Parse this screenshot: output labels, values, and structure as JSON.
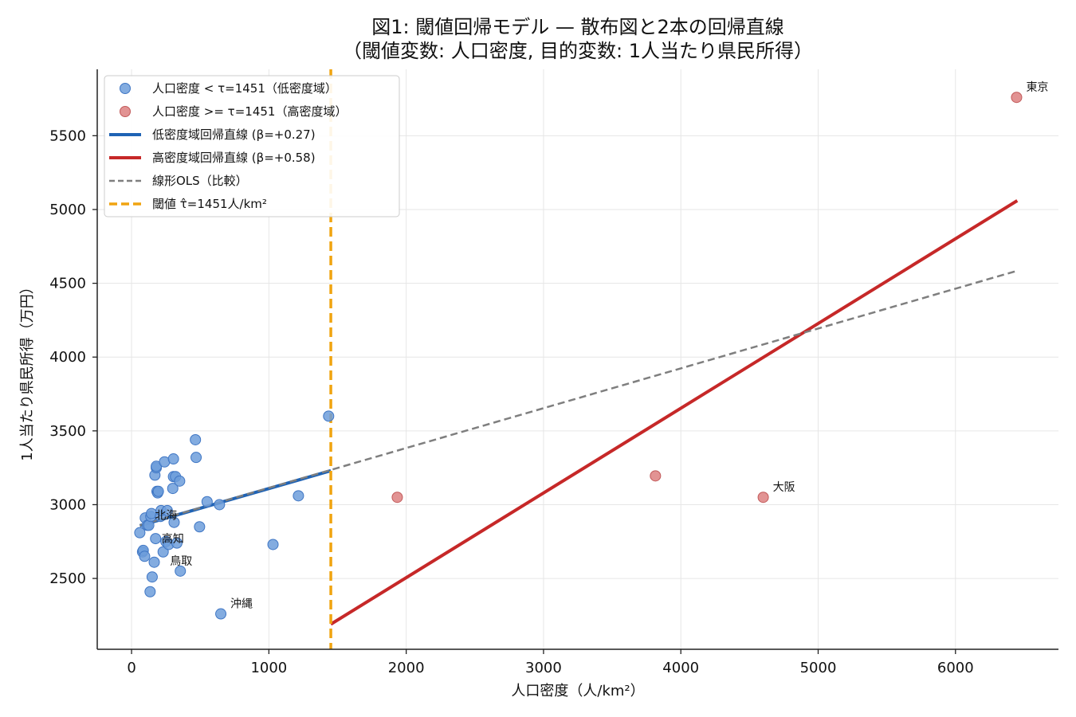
{
  "chart_data": {
    "type": "scatter",
    "title_line1": "図1: 閾値回帰モデル — 散布図と2本の回帰直線",
    "title_line2": "（閾値変数: 人口密度, 目的変数: 1人当たり県民所得）",
    "xlabel": "人口密度（人/km²）",
    "ylabel": "1人当たり県民所得（万円）",
    "xlim": [
      -250,
      6750
    ],
    "ylim": [
      2020,
      5950
    ],
    "x_ticks": [
      0,
      1000,
      2000,
      3000,
      4000,
      5000,
      6000
    ],
    "y_ticks": [
      2500,
      3000,
      3500,
      4000,
      4500,
      5000,
      5500
    ],
    "grid": true,
    "legend_position": "upper-left",
    "colors": {
      "low_points": "#6d9edb",
      "high_points": "#dd8080",
      "low_line": "#1f63b5",
      "high_line": "#c62828",
      "ols": "#7f7f7f",
      "threshold": "#f0a410"
    },
    "threshold": 1451,
    "series": [
      {
        "name": "人口密度 < τ=1451（低密度域）",
        "kind": "points",
        "color_key": "low_points",
        "points": [
          [
            60,
            2810
          ],
          [
            80,
            2680
          ],
          [
            85,
            2690
          ],
          [
            95,
            2650
          ],
          [
            100,
            2910
          ],
          [
            115,
            2860
          ],
          [
            125,
            2860
          ],
          [
            135,
            2410
          ],
          [
            140,
            2920
          ],
          [
            145,
            2940
          ],
          [
            150,
            2510
          ],
          [
            165,
            2610
          ],
          [
            170,
            3200
          ],
          [
            175,
            2770
          ],
          [
            180,
            3250
          ],
          [
            180,
            3260
          ],
          [
            185,
            3090
          ],
          [
            190,
            3080
          ],
          [
            195,
            3090
          ],
          [
            210,
            2920
          ],
          [
            215,
            2960
          ],
          [
            230,
            2680
          ],
          [
            240,
            3290
          ],
          [
            250,
            2750
          ],
          [
            260,
            2960
          ],
          [
            270,
            2730
          ],
          [
            300,
            3110
          ],
          [
            305,
            3310
          ],
          [
            305,
            3190
          ],
          [
            310,
            2880
          ],
          [
            320,
            3190
          ],
          [
            330,
            2740
          ],
          [
            350,
            3160
          ],
          [
            355,
            2550
          ],
          [
            465,
            3440
          ],
          [
            470,
            3320
          ],
          [
            495,
            2850
          ],
          [
            550,
            3020
          ],
          [
            640,
            3000
          ],
          [
            650,
            2260
          ],
          [
            1030,
            2730
          ],
          [
            1215,
            3060
          ],
          [
            1435,
            3600
          ]
        ]
      },
      {
        "name": "人口密度 >= τ=1451（高密度域）",
        "kind": "points",
        "color_key": "high_points",
        "points": [
          [
            1935,
            3050
          ],
          [
            3815,
            3195
          ],
          [
            4600,
            3050
          ],
          [
            6445,
            5760
          ]
        ]
      },
      {
        "name": "低密度域回帰直線 (β=+0.27)",
        "kind": "line",
        "color_key": "low_line",
        "points": [
          [
            60,
            2858
          ],
          [
            1451,
            3230
          ]
        ]
      },
      {
        "name": "高密度域回帰直線 (β=+0.58)",
        "kind": "line",
        "color_key": "high_line",
        "points": [
          [
            1451,
            2190
          ],
          [
            6450,
            5060
          ]
        ]
      },
      {
        "name": "線形OLS（比較）",
        "kind": "dashed",
        "color_key": "ols",
        "points": [
          [
            60,
            2860
          ],
          [
            6450,
            4585
          ]
        ]
      },
      {
        "name": "閾値 τ̂=1451人/km²",
        "kind": "vline",
        "color_key": "threshold",
        "x": 1451
      }
    ],
    "annotations": [
      {
        "label": "東京",
        "x": 6445,
        "y": 5760
      },
      {
        "label": "大阪",
        "x": 4600,
        "y": 3050
      },
      {
        "label": "沖縄",
        "x": 650,
        "y": 2260
      },
      {
        "label": "北海",
        "x": 100,
        "y": 2860
      },
      {
        "label": "高知",
        "x": 150,
        "y": 2700
      },
      {
        "label": "鳥取",
        "x": 210,
        "y": 2550
      }
    ]
  }
}
